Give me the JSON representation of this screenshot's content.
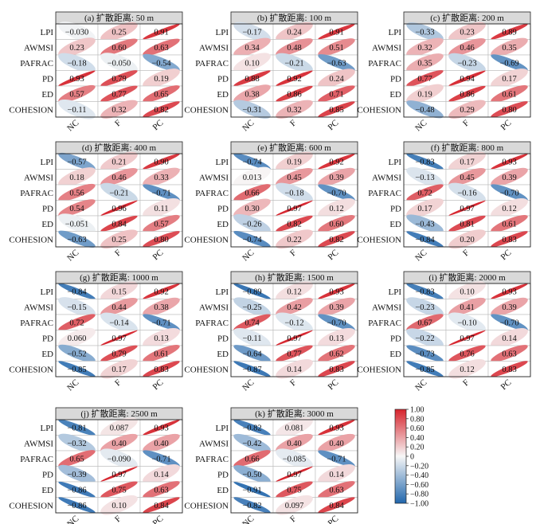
{
  "chart_data": {
    "type": "heatmap",
    "rows": [
      "LPI",
      "AWMSI",
      "PAFRAC",
      "PD",
      "ED",
      "COHESION"
    ],
    "columns": [
      "NC",
      "F",
      "PC"
    ],
    "colorbar": {
      "min": -1.0,
      "max": 1.0,
      "ticks": [
        "1.00",
        "0.80",
        "0.60",
        "0.40",
        "0.20",
        "0",
        "−0.20",
        "−0.40",
        "−0.60",
        "−0.80",
        "−1.00"
      ],
      "low_color": "#2166ac",
      "mid_color": "#f7f7f7",
      "high_color": "#d6232c"
    },
    "panels": [
      {
        "title": "(a) 扩散距离: 50 m",
        "values": [
          [
            -0.03,
            0.25,
            0.91
          ],
          [
            0.23,
            0.6,
            0.63
          ],
          [
            -0.18,
            -0.05,
            -0.54
          ],
          [
            0.93,
            0.79,
            0.19
          ],
          [
            0.57,
            0.77,
            0.65
          ],
          [
            -0.11,
            0.32,
            0.82
          ]
        ],
        "labels": [
          [
            "−0.030",
            "0.25",
            "0.91"
          ],
          [
            "0.23",
            "0.60",
            "0.63"
          ],
          [
            "−0.18",
            "−0.050",
            "−0.54"
          ],
          [
            "0.93",
            "0.79",
            "0.19"
          ],
          [
            "0.57",
            "0.77",
            "0.65"
          ],
          [
            "−0.11",
            "0.32",
            "0.82"
          ]
        ]
      },
      {
        "title": "(b) 扩散距离: 100 m",
        "values": [
          [
            -0.17,
            0.24,
            0.91
          ],
          [
            0.34,
            0.48,
            0.51
          ],
          [
            0.1,
            -0.21,
            -0.63
          ],
          [
            0.88,
            0.92,
            0.24
          ],
          [
            0.38,
            0.86,
            0.71
          ],
          [
            -0.31,
            0.32,
            0.85
          ]
        ],
        "labels": [
          [
            "−0.17",
            "0.24",
            "0.91"
          ],
          [
            "0.34",
            "0.48",
            "0.51"
          ],
          [
            "0.10",
            "−0.21",
            "−0.63"
          ],
          [
            "0.88",
            "0.92",
            "0.24"
          ],
          [
            "0.38",
            "0.86",
            "0.71"
          ],
          [
            "−0.31",
            "0.32",
            "0.85"
          ]
        ]
      },
      {
        "title": "(c) 扩散距离: 200 m",
        "values": [
          [
            -0.33,
            0.23,
            0.89
          ],
          [
            0.32,
            0.46,
            0.35
          ],
          [
            0.35,
            -0.23,
            -0.69
          ],
          [
            0.77,
            0.94,
            0.17
          ],
          [
            0.19,
            0.86,
            0.61
          ],
          [
            -0.48,
            0.29,
            0.8
          ]
        ],
        "labels": [
          [
            "−0.33",
            "0.23",
            "0.89"
          ],
          [
            "0.32",
            "0.46",
            "0.35"
          ],
          [
            "0.35",
            "−0.23",
            "−0.69"
          ],
          [
            "0.77",
            "0.94",
            "0.17"
          ],
          [
            "0.19",
            "0.86",
            "0.61"
          ],
          [
            "−0.48",
            "0.29",
            "0.80"
          ]
        ]
      },
      {
        "title": "(d) 扩散距离: 400 m",
        "values": [
          [
            -0.57,
            0.21,
            0.9
          ],
          [
            0.18,
            0.46,
            0.33
          ],
          [
            0.56,
            -0.21,
            -0.71
          ],
          [
            0.54,
            0.96,
            0.11
          ],
          [
            -0.051,
            0.84,
            0.57
          ],
          [
            -0.63,
            0.25,
            0.8
          ]
        ],
        "labels": [
          [
            "−0.57",
            "0.21",
            "0.90"
          ],
          [
            "0.18",
            "0.46",
            "0.33"
          ],
          [
            "0.56",
            "−0.21",
            "−0.71"
          ],
          [
            "0.54",
            "0.96",
            "0.11"
          ],
          [
            "−0.051",
            "0.84",
            "0.57"
          ],
          [
            "−0.63",
            "0.25",
            "0.80"
          ]
        ]
      },
      {
        "title": "(e) 扩散距离: 600 m",
        "values": [
          [
            -0.74,
            0.19,
            0.92
          ],
          [
            0.013,
            0.45,
            0.39
          ],
          [
            0.66,
            -0.18,
            -0.7
          ],
          [
            0.3,
            0.97,
            0.12
          ],
          [
            -0.26,
            0.82,
            0.6
          ],
          [
            -0.74,
            0.22,
            0.82
          ]
        ],
        "labels": [
          [
            "−0.74",
            "0.19",
            "0.92"
          ],
          [
            "0.013",
            "0.45",
            "0.39"
          ],
          [
            "0.66",
            "−0.18",
            "−0.70"
          ],
          [
            "0.30",
            "0.97",
            "0.12"
          ],
          [
            "−0.26",
            "0.82",
            "0.60"
          ],
          [
            "−0.74",
            "0.22",
            "0.82"
          ]
        ]
      },
      {
        "title": "(f) 扩散距离: 800 m",
        "values": [
          [
            -0.83,
            0.17,
            0.93
          ],
          [
            -0.13,
            0.45,
            0.39
          ],
          [
            0.72,
            -0.16,
            -0.7
          ],
          [
            0.17,
            0.97,
            0.12
          ],
          [
            -0.43,
            0.81,
            0.61
          ],
          [
            -0.84,
            0.2,
            0.83
          ]
        ],
        "labels": [
          [
            "−0.83",
            "0.17",
            "0.93"
          ],
          [
            "−0.13",
            "0.45",
            "0.39"
          ],
          [
            "0.72",
            "−0.16",
            "−0.70"
          ],
          [
            "0.17",
            "0.97",
            "0.12"
          ],
          [
            "−0.43",
            "0.81",
            "0.61"
          ],
          [
            "−0.84",
            "0.20",
            "0.83"
          ]
        ]
      },
      {
        "title": "(g) 扩散距离: 1000 m",
        "values": [
          [
            -0.84,
            0.15,
            0.92
          ],
          [
            -0.15,
            0.44,
            0.38
          ],
          [
            0.72,
            -0.14,
            -0.71
          ],
          [
            0.06,
            0.97,
            0.13
          ],
          [
            -0.52,
            0.79,
            0.61
          ],
          [
            -0.85,
            0.17,
            0.83
          ]
        ],
        "labels": [
          [
            "−0.84",
            "0.15",
            "0.92"
          ],
          [
            "−0.15",
            "0.44",
            "0.38"
          ],
          [
            "0.72",
            "−0.14",
            "−0.71"
          ],
          [
            "0.060",
            "0.97",
            "0.13"
          ],
          [
            "−0.52",
            "0.79",
            "0.61"
          ],
          [
            "−0.85",
            "0.17",
            "0.83"
          ]
        ]
      },
      {
        "title": "(h) 扩散距离: 1500 m",
        "values": [
          [
            -0.89,
            0.12,
            0.93
          ],
          [
            -0.25,
            0.42,
            0.39
          ],
          [
            0.74,
            -0.12,
            -0.7
          ],
          [
            -0.11,
            0.97,
            0.13
          ],
          [
            -0.64,
            0.77,
            0.62
          ],
          [
            -0.87,
            0.14,
            0.83
          ]
        ],
        "labels": [
          [
            "−0.89",
            "0.12",
            "0.93"
          ],
          [
            "−0.25",
            "0.42",
            "0.39"
          ],
          [
            "0.74",
            "−0.12",
            "−0.70"
          ],
          [
            "−0.11",
            "0.97",
            "0.13"
          ],
          [
            "−0.64",
            "0.77",
            "0.62"
          ],
          [
            "−0.87",
            "0.14",
            "0.83"
          ]
        ]
      },
      {
        "title": "(i) 扩散距离: 2000 m",
        "values": [
          [
            -0.83,
            0.1,
            0.93
          ],
          [
            -0.23,
            0.41,
            0.39
          ],
          [
            0.67,
            -0.1,
            -0.7
          ],
          [
            -0.22,
            0.97,
            0.14
          ],
          [
            -0.73,
            0.76,
            0.63
          ],
          [
            -0.85,
            0.12,
            0.83
          ]
        ],
        "labels": [
          [
            "−0.83",
            "0.10",
            "0.93"
          ],
          [
            "−0.23",
            "0.41",
            "0.39"
          ],
          [
            "0.67",
            "−0.10",
            "−0.70"
          ],
          [
            "−0.22",
            "0.97",
            "0.14"
          ],
          [
            "−0.73",
            "0.76",
            "0.63"
          ],
          [
            "−0.85",
            "0.12",
            "0.83"
          ]
        ]
      },
      {
        "title": "(j) 扩散距离: 2500 m",
        "values": [
          [
            -0.81,
            0.087,
            0.93
          ],
          [
            -0.32,
            0.4,
            0.4
          ],
          [
            0.65,
            -0.09,
            -0.71
          ],
          [
            -0.39,
            0.97,
            0.14
          ],
          [
            -0.86,
            0.75,
            0.63
          ],
          [
            -0.86,
            0.1,
            0.84
          ]
        ],
        "labels": [
          [
            "−0.81",
            "0.087",
            "0.93"
          ],
          [
            "−0.32",
            "0.40",
            "0.40"
          ],
          [
            "0.65",
            "−0.090",
            "−0.71"
          ],
          [
            "−0.39",
            "0.97",
            "0.14"
          ],
          [
            "−0.86",
            "0.75",
            "0.63"
          ],
          [
            "−0.86",
            "0.10",
            "0.84"
          ]
        ]
      },
      {
        "title": "(k) 扩散距离: 3000 m",
        "values": [
          [
            -0.82,
            0.081,
            0.93
          ],
          [
            -0.42,
            0.4,
            0.4
          ],
          [
            0.66,
            -0.085,
            -0.71
          ],
          [
            -0.5,
            0.97,
            0.14
          ],
          [
            -0.91,
            0.75,
            0.63
          ],
          [
            -0.82,
            0.097,
            0.84
          ]
        ],
        "labels": [
          [
            "−0.82",
            "0.081",
            "0.93"
          ],
          [
            "−0.42",
            "0.40",
            "0.40"
          ],
          [
            "0.66",
            "−0.085",
            "−0.71"
          ],
          [
            "−0.50",
            "0.97",
            "0.14"
          ],
          [
            "−0.91",
            "0.75",
            "0.63"
          ],
          [
            "−0.82",
            "0.097",
            "0.84"
          ]
        ]
      }
    ]
  }
}
